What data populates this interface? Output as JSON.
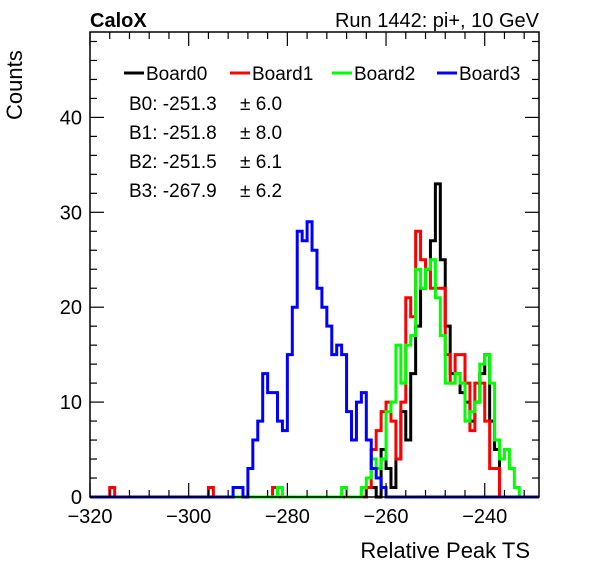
{
  "header": {
    "left_title": "CaloX",
    "right_title": "Run 1442: pi+, 10 GeV"
  },
  "chart_data": {
    "type": "histogram",
    "xlabel": "Relative Peak TS",
    "ylabel": "Counts",
    "xlim": [
      -320,
      -229
    ],
    "ylim": [
      0,
      49
    ],
    "xticks": [
      "−320",
      "−300",
      "−280",
      "−260",
      "−240"
    ],
    "xtick_values": [
      -320,
      -300,
      -280,
      -260,
      -240
    ],
    "yticks": [
      "0",
      "10",
      "20",
      "30",
      "40"
    ],
    "ytick_values": [
      0,
      10,
      20,
      30,
      40
    ],
    "grid": false,
    "legend_position": "top",
    "bin_width": 1,
    "stats": [
      {
        "label": "B0:",
        "mean": "-251.3",
        "err": "± 6.0"
      },
      {
        "label": "B1:",
        "mean": "-251.8",
        "err": "± 8.0"
      },
      {
        "label": "B2:",
        "mean": "-251.5",
        "err": "± 6.1"
      },
      {
        "label": "B3:",
        "mean": "-267.9",
        "err": "± 6.2"
      }
    ],
    "series": [
      {
        "name": "Board0",
        "color": "#000000",
        "start": -264,
        "values": [
          1,
          1,
          0,
          5,
          3,
          1,
          4,
          9,
          6,
          13,
          18,
          22,
          24,
          27,
          33,
          25,
          18,
          13,
          13,
          11,
          10,
          8,
          10,
          13,
          15,
          8,
          5
        ]
      },
      {
        "name": "Board1",
        "color": "#ff0000",
        "start": -264,
        "values": [
          1,
          5,
          7,
          9,
          10,
          8,
          4,
          10,
          21,
          19,
          28,
          25,
          24,
          22,
          22,
          22,
          15,
          12,
          15,
          15,
          12,
          7,
          12,
          12,
          8,
          3,
          3
        ],
        "extra": [
          {
            "x": -316,
            "v": 1
          },
          {
            "x": -296,
            "v": 1
          },
          {
            "x": -283,
            "v": 1
          }
        ]
      },
      {
        "name": "Board2",
        "color": "#00ff00",
        "start": -282,
        "values": [
          1,
          0,
          0,
          0,
          0,
          0,
          0,
          0,
          0,
          0,
          0,
          0,
          0,
          1,
          0,
          0,
          0,
          1,
          2,
          4,
          3,
          4,
          9,
          10,
          16,
          12,
          16,
          17,
          24,
          22,
          24,
          25,
          21,
          17,
          12,
          12,
          13,
          12,
          8,
          9,
          10,
          14,
          15,
          12,
          6,
          4,
          5,
          3,
          1
        ]
      },
      {
        "name": "Board3",
        "color": "#0000ff",
        "start": -291,
        "values": [
          1,
          1,
          0,
          3,
          6,
          8,
          13,
          11,
          11,
          8,
          7,
          15,
          20,
          28,
          27,
          29,
          26,
          22,
          20,
          18,
          15,
          16,
          15,
          9,
          6,
          10,
          11,
          6,
          3,
          2,
          1,
          0,
          0
        ]
      }
    ]
  }
}
